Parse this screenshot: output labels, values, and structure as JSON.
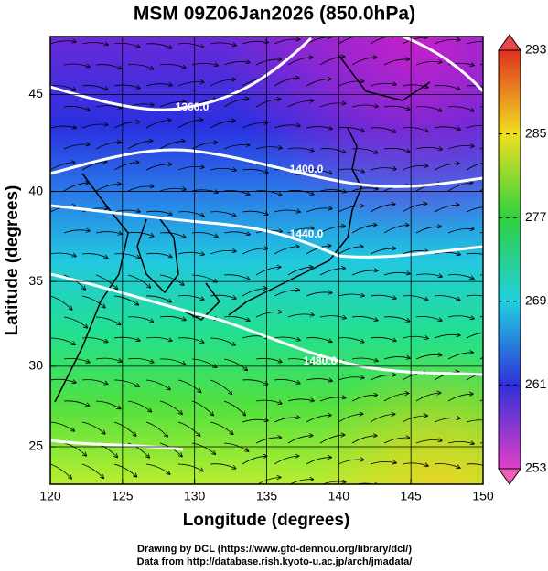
{
  "header": {
    "title": "MSM 09Z06Jan2026 (850.0hPa)"
  },
  "map": {
    "xlabel": "Longitude (degrees)",
    "ylabel": "Latitude  (degrees)",
    "xlim": [
      120,
      150
    ],
    "ylim": [
      22.6,
      47.8
    ],
    "xticks": [
      120,
      125,
      130,
      135,
      140,
      145,
      150
    ],
    "yticks": [
      25,
      30,
      35,
      40,
      45
    ],
    "contour_labels": [
      "1360.0",
      "1400.0",
      "1440.0",
      "1480.0"
    ]
  },
  "colorbar": {
    "lim": [
      253,
      293
    ],
    "ticks": [
      253,
      261,
      269,
      277,
      285,
      293
    ]
  },
  "footer": {
    "lines": [
      "Drawing by DCL (https://www.gfd-dennou.org/library/dcl/)",
      "Data from http://database.rish.kyoto-u.ac.jp/arch/jmadata/"
    ]
  }
}
